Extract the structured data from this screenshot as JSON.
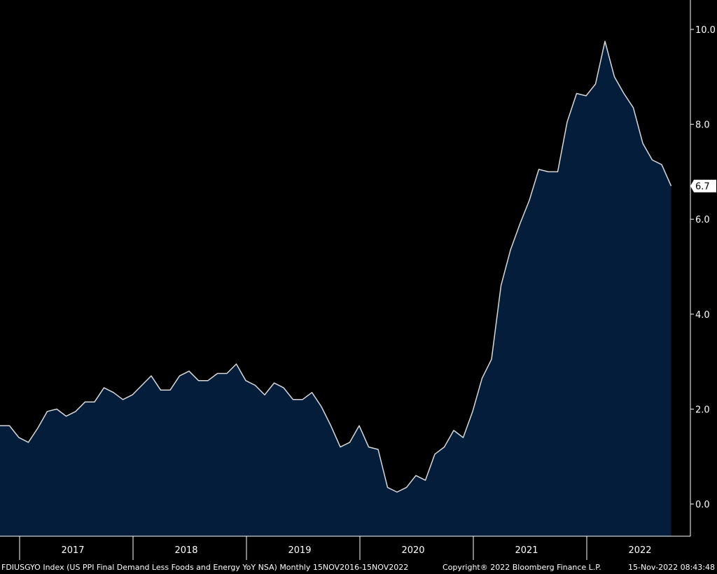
{
  "chart_data": {
    "type": "area",
    "x_unit": "month",
    "x_start": "2016-11",
    "y_ticks": [
      0.0,
      2.0,
      4.0,
      6.0,
      8.0,
      10.0
    ],
    "y_tick_labels": [
      "0.0",
      "2.0",
      "4.0",
      "6.0",
      "8.0",
      "10.0"
    ],
    "ylim": [
      -0.6,
      10.5
    ],
    "x_tick_labels": [
      "2017",
      "2018",
      "2019",
      "2020",
      "2021",
      "2022"
    ],
    "grid": false,
    "series": [
      {
        "values": [
          1.65,
          1.65,
          1.4,
          1.3,
          1.6,
          1.95,
          2.0,
          1.85,
          1.95,
          2.15,
          2.15,
          2.45,
          2.35,
          2.2,
          2.3,
          2.5,
          2.7,
          2.4,
          2.4,
          2.7,
          2.8,
          2.6,
          2.6,
          2.75,
          2.75,
          2.95,
          2.6,
          2.5,
          2.3,
          2.55,
          2.45,
          2.2,
          2.2,
          2.35,
          2.05,
          1.65,
          1.2,
          1.3,
          1.65,
          1.2,
          1.15,
          0.35,
          0.25,
          0.35,
          0.6,
          0.5,
          1.05,
          1.2,
          1.55,
          1.4,
          1.95,
          2.65,
          3.05,
          4.6,
          5.35,
          5.9,
          6.4,
          7.05,
          7.0,
          7.0,
          8.05,
          8.65,
          8.6,
          8.85,
          9.75,
          9.0,
          8.65,
          8.35,
          7.6,
          7.25,
          7.15,
          6.7
        ]
      }
    ],
    "last_value_label": "6.7",
    "colors": {
      "line": "#d8d8d8",
      "fill": "#041d3a",
      "background": "#000000",
      "label_box": "#ffffff"
    }
  },
  "footer": {
    "left": "FDIUSGYO Index (US PPI Final Demand Less Foods and Energy YoY NSA)  Monthly 15NOV2016-15NOV2022",
    "mid": "Copyright® 2022 Bloomberg Finance L.P.",
    "right": "15-Nov-2022 08:43:48"
  }
}
